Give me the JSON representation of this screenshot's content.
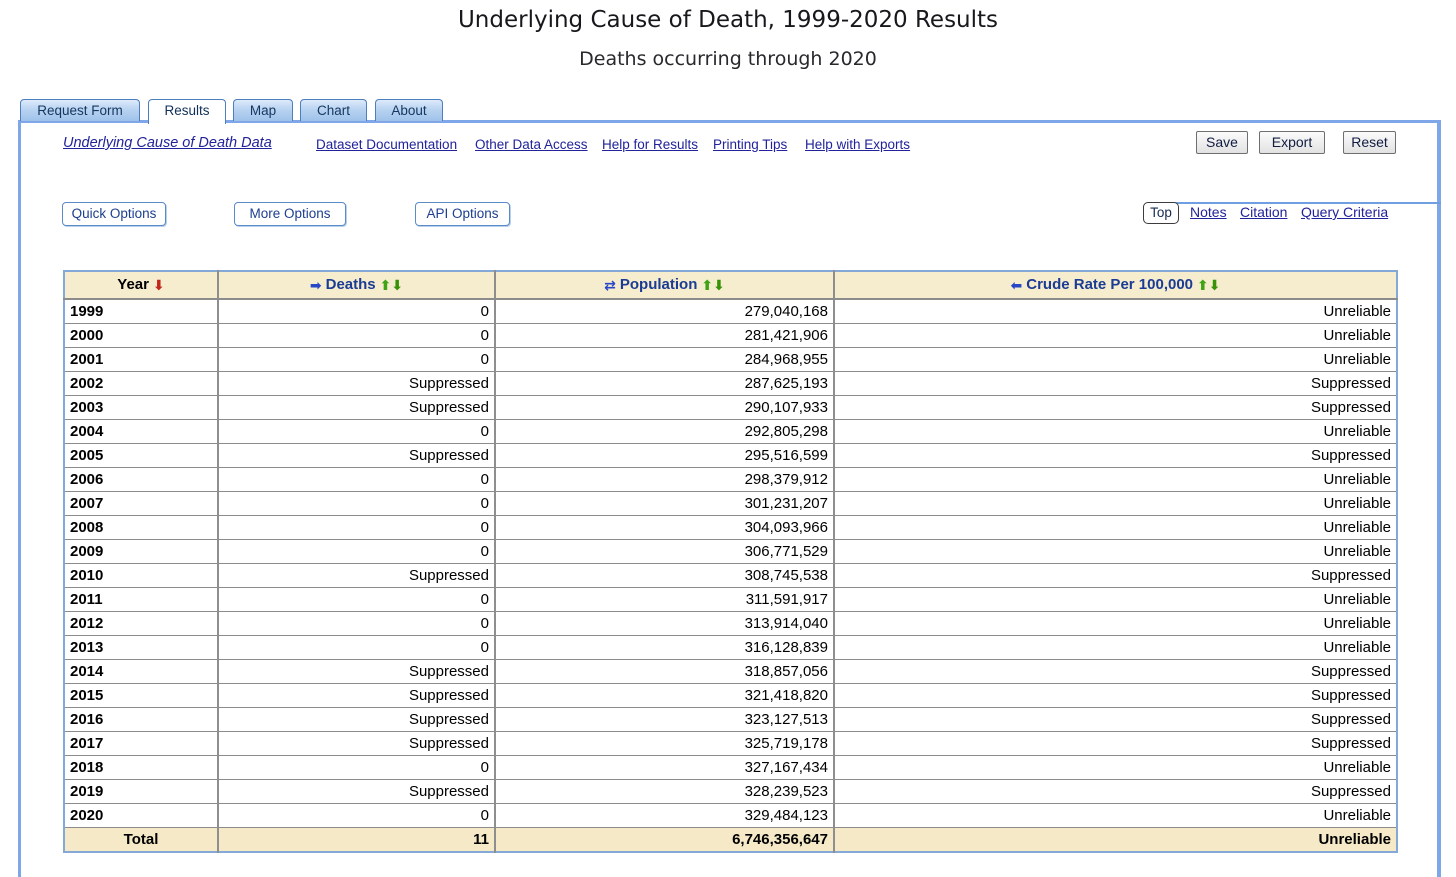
{
  "page": {
    "title": "Underlying Cause of Death, 1999-2020 Results",
    "subtitle": "Deaths occurring through 2020"
  },
  "tabs": [
    {
      "label": "Request Form",
      "active": false
    },
    {
      "label": "Results",
      "active": true
    },
    {
      "label": "Map",
      "active": false
    },
    {
      "label": "Chart",
      "active": false
    },
    {
      "label": "About",
      "active": false
    }
  ],
  "toolbar": {
    "dataset_link": "Underlying Cause of Death Data",
    "links": [
      {
        "label": "Dataset Documentation"
      },
      {
        "label": "Other Data Access"
      },
      {
        "label": "Help for Results"
      },
      {
        "label": "Printing Tips"
      },
      {
        "label": "Help with Exports"
      }
    ],
    "buttons": {
      "save": "Save",
      "export": "Export",
      "reset": "Reset"
    }
  },
  "options": {
    "quick_options": "Quick Options",
    "more_options": "More Options",
    "api_options": "API Options",
    "top_button": "Top",
    "nav_links": {
      "notes": "Notes",
      "citation": "Citation",
      "query_criteria": "Query Criteria"
    }
  },
  "table": {
    "columns": [
      {
        "label": "Year",
        "sort_glyph": "⬇"
      },
      {
        "label": "Deaths",
        "move_glyph": "➡"
      },
      {
        "label": "Population",
        "move_glyph": "⇄"
      },
      {
        "label": "Crude Rate Per 100,000",
        "move_glyph": "⬅"
      }
    ],
    "icons": {
      "sort_up": "⬆",
      "sort_down": "⬇"
    },
    "rows": [
      {
        "year": "1999",
        "deaths": "0",
        "population": "279,040,168",
        "crude_rate": "Unreliable"
      },
      {
        "year": "2000",
        "deaths": "0",
        "population": "281,421,906",
        "crude_rate": "Unreliable"
      },
      {
        "year": "2001",
        "deaths": "0",
        "population": "284,968,955",
        "crude_rate": "Unreliable"
      },
      {
        "year": "2002",
        "deaths": "Suppressed",
        "population": "287,625,193",
        "crude_rate": "Suppressed"
      },
      {
        "year": "2003",
        "deaths": "Suppressed",
        "population": "290,107,933",
        "crude_rate": "Suppressed"
      },
      {
        "year": "2004",
        "deaths": "0",
        "population": "292,805,298",
        "crude_rate": "Unreliable"
      },
      {
        "year": "2005",
        "deaths": "Suppressed",
        "population": "295,516,599",
        "crude_rate": "Suppressed"
      },
      {
        "year": "2006",
        "deaths": "0",
        "population": "298,379,912",
        "crude_rate": "Unreliable"
      },
      {
        "year": "2007",
        "deaths": "0",
        "population": "301,231,207",
        "crude_rate": "Unreliable"
      },
      {
        "year": "2008",
        "deaths": "0",
        "population": "304,093,966",
        "crude_rate": "Unreliable"
      },
      {
        "year": "2009",
        "deaths": "0",
        "population": "306,771,529",
        "crude_rate": "Unreliable"
      },
      {
        "year": "2010",
        "deaths": "Suppressed",
        "population": "308,745,538",
        "crude_rate": "Suppressed"
      },
      {
        "year": "2011",
        "deaths": "0",
        "population": "311,591,917",
        "crude_rate": "Unreliable"
      },
      {
        "year": "2012",
        "deaths": "0",
        "population": "313,914,040",
        "crude_rate": "Unreliable"
      },
      {
        "year": "2013",
        "deaths": "0",
        "population": "316,128,839",
        "crude_rate": "Unreliable"
      },
      {
        "year": "2014",
        "deaths": "Suppressed",
        "population": "318,857,056",
        "crude_rate": "Suppressed"
      },
      {
        "year": "2015",
        "deaths": "Suppressed",
        "population": "321,418,820",
        "crude_rate": "Suppressed"
      },
      {
        "year": "2016",
        "deaths": "Suppressed",
        "population": "323,127,513",
        "crude_rate": "Suppressed"
      },
      {
        "year": "2017",
        "deaths": "Suppressed",
        "population": "325,719,178",
        "crude_rate": "Suppressed"
      },
      {
        "year": "2018",
        "deaths": "0",
        "population": "327,167,434",
        "crude_rate": "Unreliable"
      },
      {
        "year": "2019",
        "deaths": "Suppressed",
        "population": "328,239,523",
        "crude_rate": "Suppressed"
      },
      {
        "year": "2020",
        "deaths": "0",
        "population": "329,484,123",
        "crude_rate": "Unreliable"
      }
    ],
    "total": {
      "label": "Total",
      "deaths": "11",
      "population": "6,746,356,647",
      "crude_rate": "Unreliable"
    }
  },
  "colors": {
    "frame_blue": "#7fa6e8",
    "table_border_blue": "#85a9d6",
    "header_cream": "#f6ecce",
    "total_cream": "#f5e9c8",
    "link_blue": "#22229b",
    "header_text_navy": "#1a3c94",
    "arrow_red": "#c3271b",
    "arrow_green": "#3fa313",
    "arrow_blue": "#2746c8"
  }
}
